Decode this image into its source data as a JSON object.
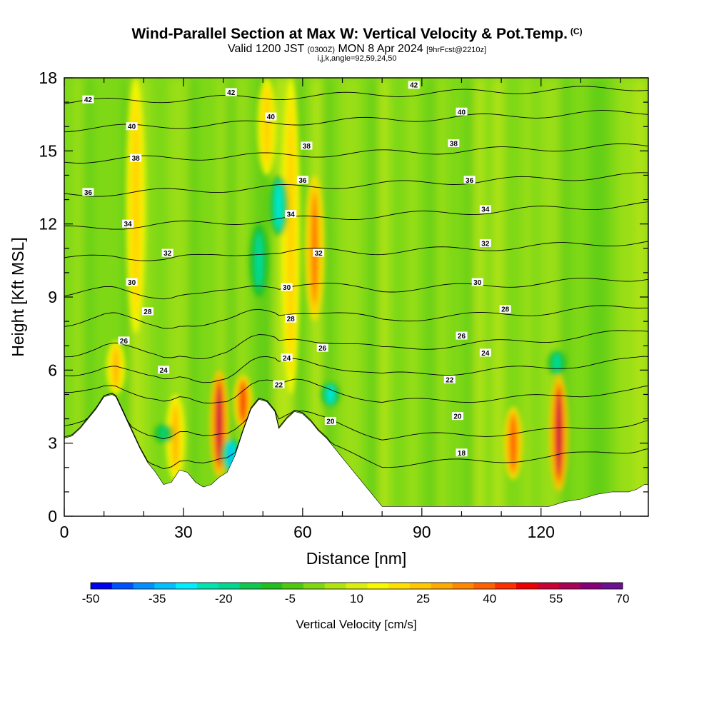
{
  "title": {
    "main": "Wind-Parallel Section at Max W: Vertical Velocity & Pot.Temp.",
    "copyright": "(C)",
    "valid_prefix": "Valid 1200 JST",
    "valid_utc": "(0300Z)",
    "valid_date": "MON 8 Apr 2024",
    "forecast": "[9hrFcst@2210z]",
    "params": "i,j,k,angle=92,59,24,50"
  },
  "chart_data": {
    "type": "heatmap",
    "xlabel": "Distance [nm]",
    "ylabel": "Height [Kft MSL]",
    "xlim": [
      0,
      147
    ],
    "ylim": [
      0,
      18
    ],
    "x_ticks": [
      0,
      30,
      60,
      90,
      120
    ],
    "y_ticks": [
      0,
      3,
      6,
      9,
      12,
      15,
      18
    ],
    "colorbar": {
      "label": "Vertical Velocity [cm/s]",
      "tick_labels": [
        "-50",
        "-35",
        "-20",
        "-5",
        "10",
        "25",
        "40",
        "55",
        "70"
      ],
      "tick_values": [
        -50,
        -35,
        -20,
        -5,
        10,
        25,
        40,
        55,
        70
      ],
      "colors": [
        "#0000ee",
        "#0050ff",
        "#0090ff",
        "#00c0ff",
        "#00eeff",
        "#00e4b0",
        "#00d890",
        "#10c850",
        "#20c020",
        "#50c810",
        "#80d810",
        "#b0e410",
        "#dcee10",
        "#f8f800",
        "#ffe000",
        "#ffc800",
        "#ffaa00",
        "#ff8800",
        "#ff6000",
        "#ff3000",
        "#ee0000",
        "#cc0033",
        "#aa0055",
        "#880077",
        "#6a1090"
      ]
    },
    "terrain_top_kft": [
      [
        0,
        3.2
      ],
      [
        2,
        3.3
      ],
      [
        4,
        3.6
      ],
      [
        6,
        4.0
      ],
      [
        8,
        4.4
      ],
      [
        10,
        4.9
      ],
      [
        12,
        5.0
      ],
      [
        13,
        4.9
      ],
      [
        15,
        4.2
      ],
      [
        17,
        3.5
      ],
      [
        19,
        2.8
      ],
      [
        21,
        2.2
      ],
      [
        23,
        1.8
      ],
      [
        25,
        1.3
      ],
      [
        27,
        1.4
      ],
      [
        29,
        1.9
      ],
      [
        31,
        1.8
      ],
      [
        33,
        1.4
      ],
      [
        35,
        1.2
      ],
      [
        37,
        1.3
      ],
      [
        39,
        1.6
      ],
      [
        41,
        1.8
      ],
      [
        43,
        2.5
      ],
      [
        45,
        3.5
      ],
      [
        47,
        4.4
      ],
      [
        49,
        4.8
      ],
      [
        51,
        4.7
      ],
      [
        53,
        4.3
      ],
      [
        54,
        3.6
      ],
      [
        56,
        4.0
      ],
      [
        58,
        4.3
      ],
      [
        60,
        4.2
      ],
      [
        62,
        3.9
      ],
      [
        64,
        3.5
      ],
      [
        66,
        3.2
      ],
      [
        68,
        2.8
      ],
      [
        70,
        2.4
      ],
      [
        72,
        2.0
      ],
      [
        74,
        1.6
      ],
      [
        76,
        1.2
      ],
      [
        78,
        0.8
      ],
      [
        80,
        0.4
      ],
      [
        100,
        0.4
      ],
      [
        118,
        0.4
      ],
      [
        122,
        0.4
      ],
      [
        126,
        0.6
      ],
      [
        130,
        0.7
      ],
      [
        134,
        0.9
      ],
      [
        138,
        1.0
      ],
      [
        142,
        1.0
      ],
      [
        144,
        1.1
      ],
      [
        146,
        1.3
      ],
      [
        147,
        1.3
      ]
    ],
    "isentropes": [
      {
        "value": 18,
        "label_at": [
          100,
          2.6
        ],
        "y_left": 2.3,
        "y_right": 3.2
      },
      {
        "value": 20,
        "label_at": [
          67,
          3.9
        ],
        "y_left": 3.4,
        "y_right": 4.2
      },
      {
        "value": 20,
        "label_at": [
          99,
          4.1
        ],
        "y_left": null,
        "y_right": null
      },
      {
        "value": 22,
        "label_at": [
          54,
          5.4
        ],
        "y_left": 4.8,
        "y_right": 5.5
      },
      {
        "value": 22,
        "label_at": [
          97,
          5.6
        ],
        "y_left": null,
        "y_right": null
      },
      {
        "value": 24,
        "label_at": [
          25,
          6.0
        ],
        "y_left": 5.6,
        "y_right": 6.7
      },
      {
        "value": 24,
        "label_at": [
          56,
          6.5
        ],
        "y_left": null,
        "y_right": null
      },
      {
        "value": 24,
        "label_at": [
          106,
          6.7
        ],
        "y_left": null,
        "y_right": null
      },
      {
        "value": 26,
        "label_at": [
          15,
          7.2
        ],
        "y_left": 6.5,
        "y_right": 7.8
      },
      {
        "value": 26,
        "label_at": [
          65,
          6.9
        ],
        "y_left": null,
        "y_right": null
      },
      {
        "value": 26,
        "label_at": [
          100,
          7.4
        ],
        "y_left": null,
        "y_right": null
      },
      {
        "value": 28,
        "label_at": [
          21,
          8.4
        ],
        "y_left": 7.8,
        "y_right": 8.8
      },
      {
        "value": 28,
        "label_at": [
          57,
          8.1
        ],
        "y_left": null,
        "y_right": null
      },
      {
        "value": 28,
        "label_at": [
          111,
          8.5
        ],
        "y_left": null,
        "y_right": null
      },
      {
        "value": 30,
        "label_at": [
          17,
          9.6
        ],
        "y_left": 9.0,
        "y_right": 9.9
      },
      {
        "value": 30,
        "label_at": [
          56,
          9.4
        ],
        "y_left": null,
        "y_right": null
      },
      {
        "value": 30,
        "label_at": [
          104,
          9.6
        ],
        "y_left": null,
        "y_right": null
      },
      {
        "value": 32,
        "label_at": [
          26,
          10.8
        ],
        "y_left": 10.5,
        "y_right": 11.3
      },
      {
        "value": 32,
        "label_at": [
          64,
          10.8
        ],
        "y_left": null,
        "y_right": null
      },
      {
        "value": 32,
        "label_at": [
          106,
          11.2
        ],
        "y_left": null,
        "y_right": null
      },
      {
        "value": 34,
        "label_at": [
          16,
          12.0
        ],
        "y_left": 11.8,
        "y_right": 12.8
      },
      {
        "value": 34,
        "label_at": [
          57,
          12.4
        ],
        "y_left": null,
        "y_right": null
      },
      {
        "value": 34,
        "label_at": [
          106,
          12.6
        ],
        "y_left": null,
        "y_right": null
      },
      {
        "value": 36,
        "label_at": [
          6,
          13.3
        ],
        "y_left": 13.2,
        "y_right": 14.0
      },
      {
        "value": 36,
        "label_at": [
          60,
          13.8
        ],
        "y_left": null,
        "y_right": null
      },
      {
        "value": 36,
        "label_at": [
          102,
          13.8
        ],
        "y_left": null,
        "y_right": null
      },
      {
        "value": 38,
        "label_at": [
          18,
          14.7
        ],
        "y_left": 14.6,
        "y_right": 15.2
      },
      {
        "value": 38,
        "label_at": [
          61,
          15.2
        ],
        "y_left": null,
        "y_right": null
      },
      {
        "value": 38,
        "label_at": [
          98,
          15.3
        ],
        "y_left": null,
        "y_right": null
      },
      {
        "value": 40,
        "label_at": [
          17,
          16.0
        ],
        "y_left": 15.9,
        "y_right": 16.6
      },
      {
        "value": 40,
        "label_at": [
          52,
          16.4
        ],
        "y_left": null,
        "y_right": null
      },
      {
        "value": 40,
        "label_at": [
          100,
          16.6
        ],
        "y_left": null,
        "y_right": null
      },
      {
        "value": 42,
        "label_at": [
          6,
          17.1
        ],
        "y_left": 17.0,
        "y_right": 17.6
      },
      {
        "value": 42,
        "label_at": [
          42,
          17.4
        ],
        "y_left": null,
        "y_right": null
      },
      {
        "value": 42,
        "label_at": [
          88,
          17.7
        ],
        "y_left": null,
        "y_right": null
      }
    ],
    "updraft_cores": [
      {
        "x": 13,
        "y_bottom": 5.0,
        "y_top": 7.2,
        "w_cms": 30
      },
      {
        "x": 18,
        "y_bottom": 7.5,
        "y_top": 18,
        "w_cms": 25
      },
      {
        "x": 28,
        "y_bottom": 1.5,
        "y_top": 5.0,
        "w_cms": 30
      },
      {
        "x": 39,
        "y_bottom": 1.6,
        "y_top": 6.0,
        "w_cms": 60
      },
      {
        "x": 45,
        "y_bottom": 3.6,
        "y_top": 5.8,
        "w_cms": 50
      },
      {
        "x": 51,
        "y_bottom": 14.0,
        "y_top": 18,
        "w_cms": 25
      },
      {
        "x": 57,
        "y_bottom": 5.0,
        "y_top": 18,
        "w_cms": 25
      },
      {
        "x": 63,
        "y_bottom": 8.0,
        "y_top": 14.0,
        "w_cms": 40
      },
      {
        "x": 113,
        "y_bottom": 1.5,
        "y_top": 4.5,
        "w_cms": 45
      },
      {
        "x": 124.5,
        "y_bottom": 1.0,
        "y_top": 5.8,
        "w_cms": 60
      }
    ],
    "downdraft_cores": [
      {
        "x": 25,
        "y_bottom": 3.0,
        "y_top": 3.8,
        "w_cms": -20
      },
      {
        "x": 42,
        "y_bottom": 1.8,
        "y_top": 3.2,
        "w_cms": -40
      },
      {
        "x": 49,
        "y_bottom": 9.0,
        "y_top": 12.0,
        "w_cms": -25
      },
      {
        "x": 54,
        "y_bottom": 11.5,
        "y_top": 14.0,
        "w_cms": -30
      },
      {
        "x": 67,
        "y_bottom": 4.5,
        "y_top": 5.5,
        "w_cms": -30
      },
      {
        "x": 124,
        "y_bottom": 5.8,
        "y_top": 6.8,
        "w_cms": -25
      }
    ]
  }
}
